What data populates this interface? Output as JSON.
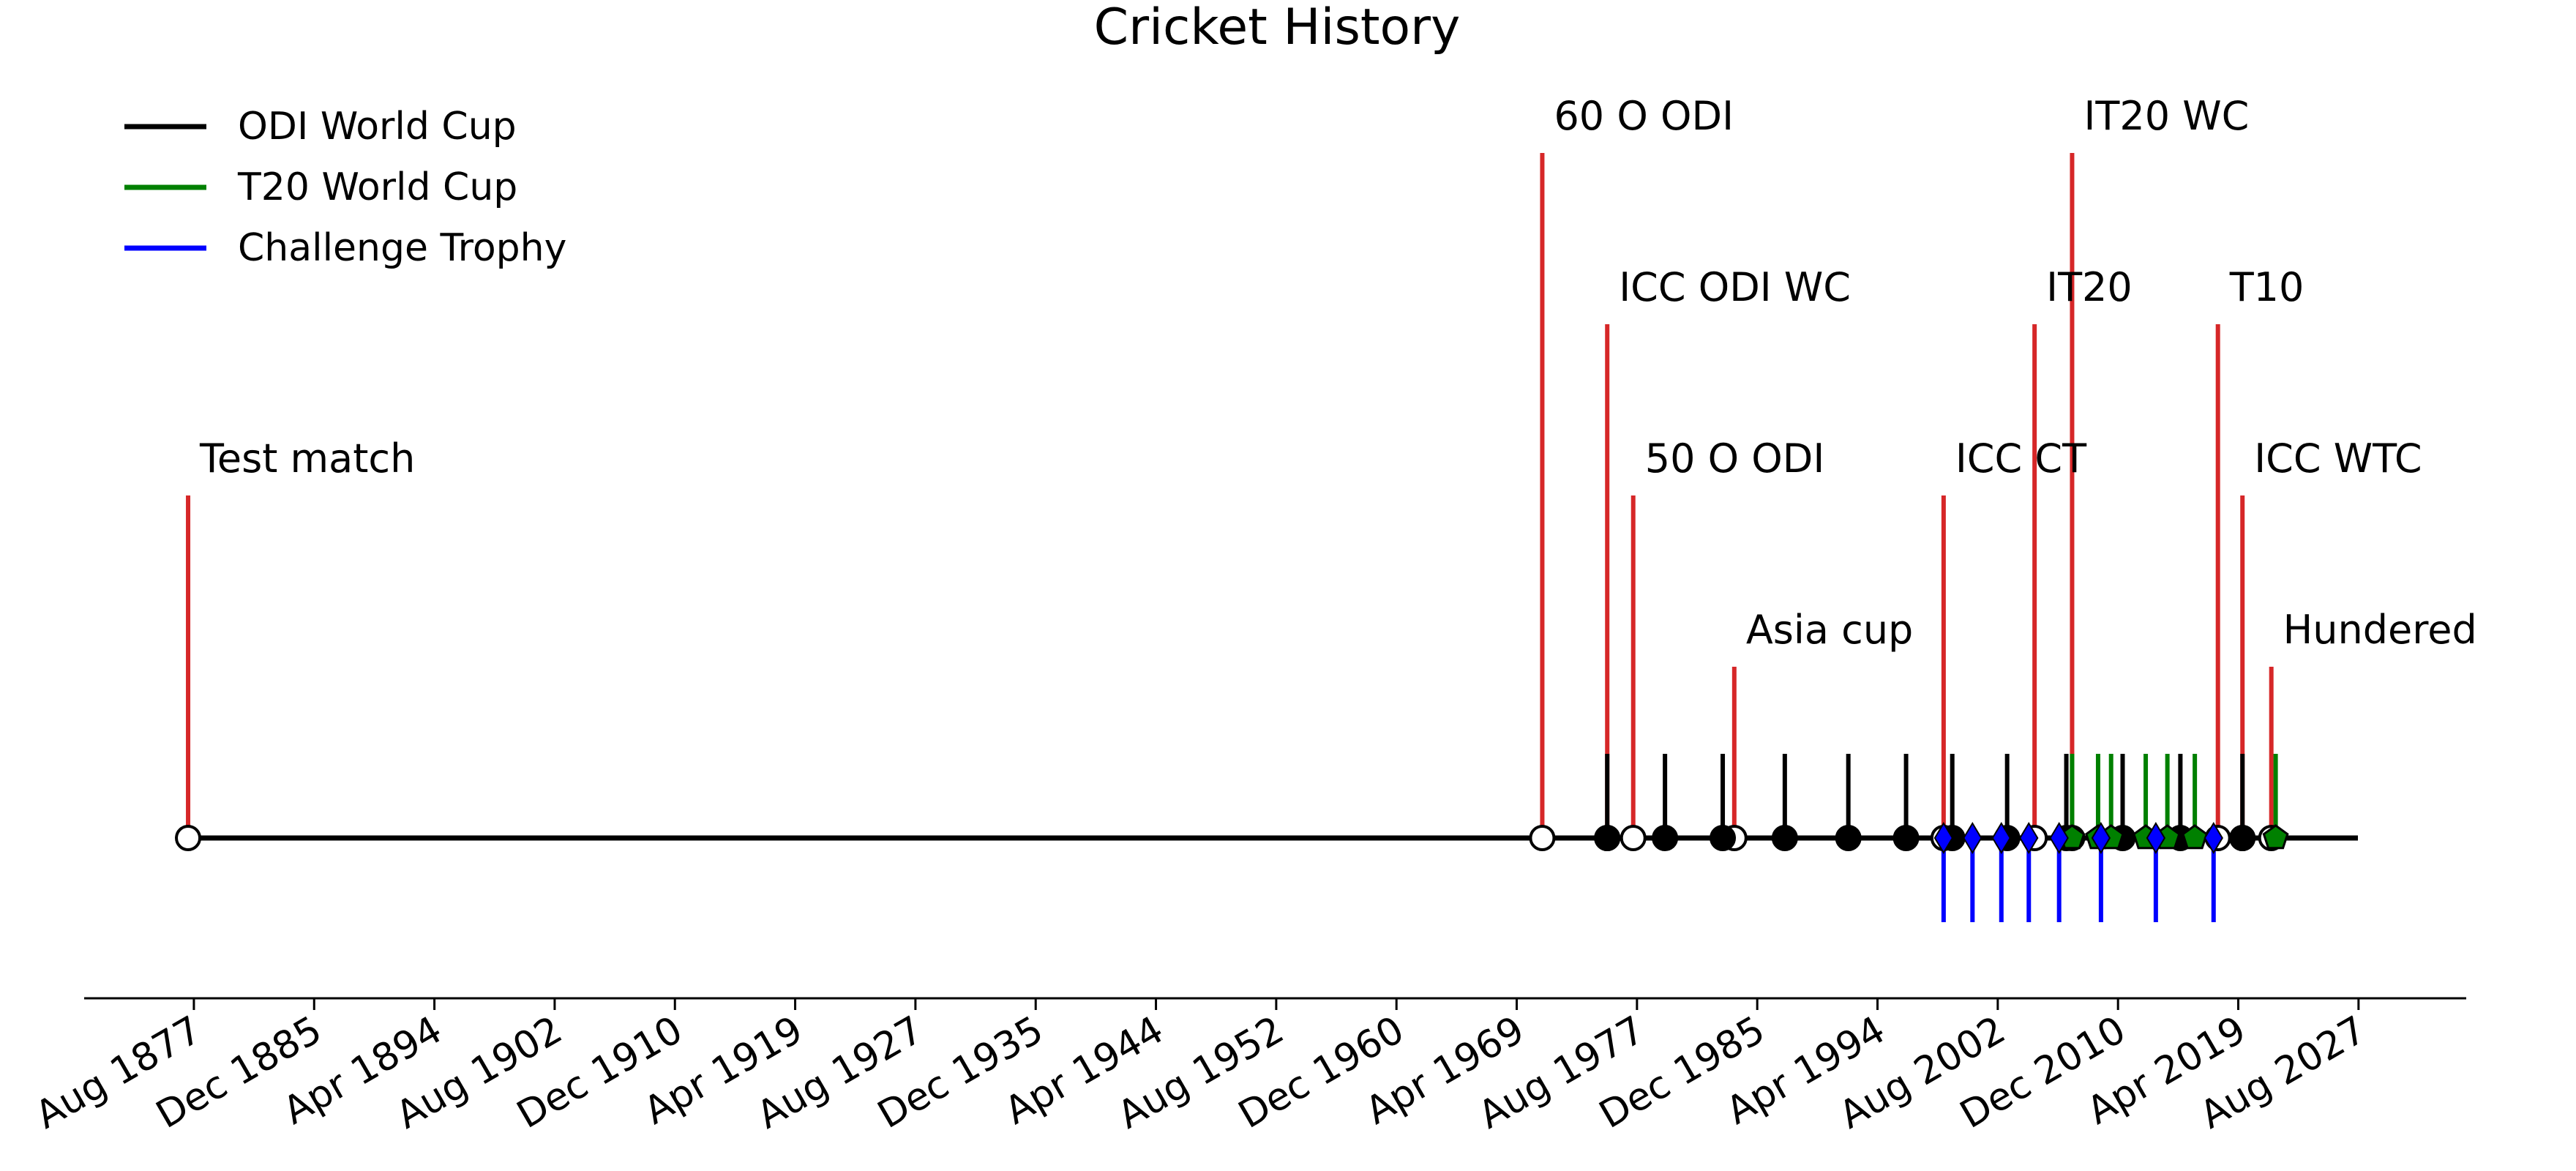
{
  "chart_data": {
    "type": "timeline",
    "title": "Cricket History",
    "x_tick_labels": [
      "Aug 1877",
      "Dec 1885",
      "Apr 1894",
      "Aug 1902",
      "Dec 1910",
      "Apr 1919",
      "Aug 1927",
      "Dec 1935",
      "Apr 1944",
      "Aug 1952",
      "Dec 1960",
      "Apr 1969",
      "Aug 1977",
      "Dec 1985",
      "Apr 1994",
      "Aug 2002",
      "Dec 2010",
      "Apr 2019",
      "Aug 2027"
    ],
    "x_range": [
      1870.0,
      2035.0
    ],
    "legend": {
      "placement": "upper-left",
      "entries": [
        {
          "label": "ODI World Cup",
          "color": "#000000"
        },
        {
          "label": "T20 World Cup",
          "color": "#008000"
        },
        {
          "label": "Challenge Trophy",
          "color": "#0000ff"
        }
      ]
    },
    "milestones": [
      {
        "label": "Test match",
        "year": 1877.2,
        "level": 3
      },
      {
        "label": "60 O ODI",
        "year": 1971.0,
        "level": 6
      },
      {
        "label": "ICC ODI WC",
        "year": 1975.5,
        "level": 4.5
      },
      {
        "label": "50 O ODI",
        "year": 1977.3,
        "level": 3
      },
      {
        "label": "Asia cup",
        "year": 1984.3,
        "level": 1.5
      },
      {
        "label": "ICC CT",
        "year": 1998.8,
        "level": 3
      },
      {
        "label": "IT20",
        "year": 2005.1,
        "level": 4.5
      },
      {
        "label": "IT20 WC",
        "year": 2007.7,
        "level": 6
      },
      {
        "label": "T10",
        "year": 2017.8,
        "level": 4.5
      },
      {
        "label": "ICC WTC",
        "year": 2019.5,
        "level": 3
      },
      {
        "label": "Hundered",
        "year": 2021.5,
        "level": 1.5
      }
    ],
    "series": [
      {
        "name": "ODI World Cup",
        "color": "#000000",
        "years": [
          1975.5,
          1979.5,
          1983.5,
          1987.8,
          1992.2,
          1996.2,
          1999.4,
          2003.2,
          2007.3,
          2011.2,
          2015.2,
          2019.5
        ]
      },
      {
        "name": "T20 World Cup",
        "color": "#008000",
        "years": [
          2007.7,
          2009.5,
          2010.4,
          2012.8,
          2014.3,
          2016.2,
          2021.8
        ]
      },
      {
        "name": "Challenge Trophy",
        "color": "#0000ff",
        "years": [
          1998.8,
          2000.8,
          2002.8,
          2004.7,
          2006.8,
          2009.7,
          2013.5,
          2017.5
        ]
      }
    ]
  }
}
